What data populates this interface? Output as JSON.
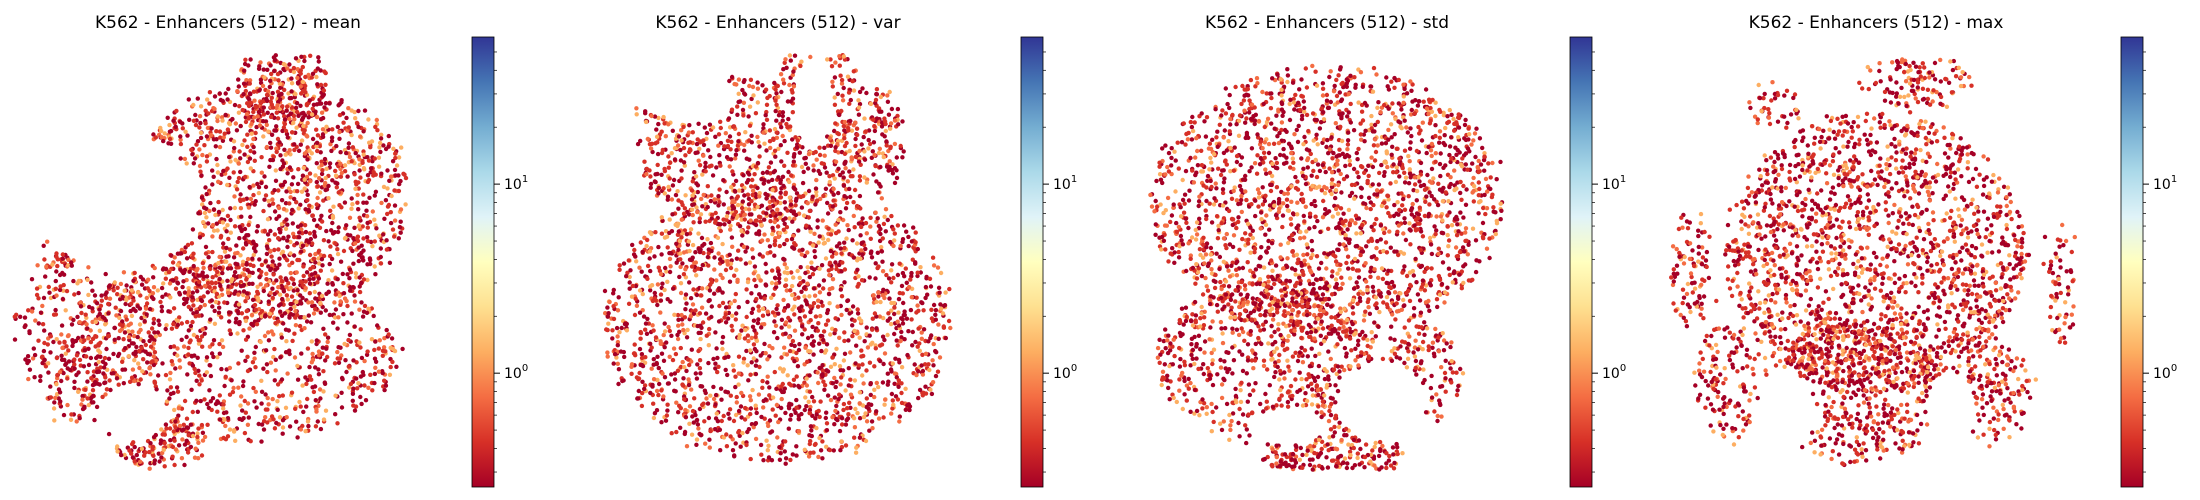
{
  "chart_data": [
    {
      "type": "scatter",
      "title": "K562 - Enhancers (512) - mean",
      "color_scale": {
        "type": "log",
        "colormap": "RdYlBu",
        "ticks": [
          {
            "base": "10",
            "exp": "1",
            "value": 10
          },
          {
            "base": "10",
            "exp": "0",
            "value": 1
          }
        ]
      },
      "shape": "mean"
    },
    {
      "type": "scatter",
      "title": "K562 - Enhancers (512) - var",
      "color_scale": {
        "type": "log",
        "colormap": "RdYlBu",
        "ticks": [
          {
            "base": "10",
            "exp": "1",
            "value": 10
          },
          {
            "base": "10",
            "exp": "0",
            "value": 1
          }
        ]
      },
      "shape": "var"
    },
    {
      "type": "scatter",
      "title": "K562 - Enhancers (512) - std",
      "color_scale": {
        "type": "log",
        "colormap": "RdYlBu",
        "ticks": [
          {
            "base": "10",
            "exp": "1",
            "value": 10
          },
          {
            "base": "10",
            "exp": "0",
            "value": 1
          }
        ]
      },
      "shape": "std"
    },
    {
      "type": "scatter",
      "title": "K562 - Enhancers (512) - max",
      "color_scale": {
        "type": "log",
        "colormap": "RdYlBu",
        "ticks": [
          {
            "base": "10",
            "exp": "1",
            "value": 10
          },
          {
            "base": "10",
            "exp": "0",
            "value": 1
          }
        ]
      },
      "shape": "max"
    }
  ],
  "colors": {
    "point_dark": "#a50026",
    "point_mid": "#d73027",
    "point_light": "#f46d43",
    "point_pale": "#fdae61"
  }
}
